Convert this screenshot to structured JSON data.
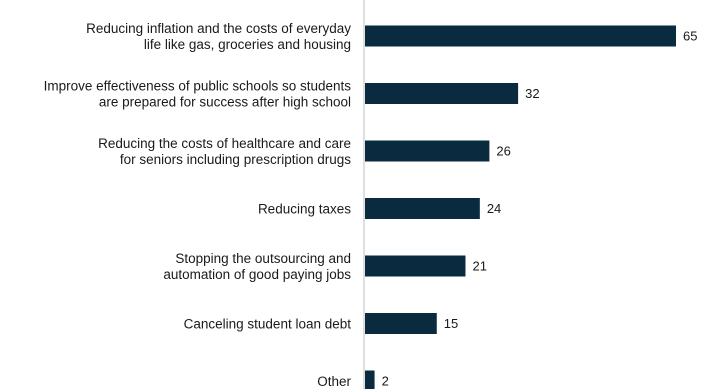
{
  "chart_data": {
    "type": "bar",
    "orientation": "horizontal",
    "categories": [
      [
        "Reducing inflation and the costs of everyday",
        "life like gas, groceries and housing"
      ],
      [
        "Improve effectiveness of public schools so students",
        "are prepared for success after high school"
      ],
      [
        "Reducing the costs of healthcare and care",
        "for seniors including prescription drugs"
      ],
      [
        "Reducing taxes"
      ],
      [
        "Stopping the outsourcing and",
        "automation of good paying jobs"
      ],
      [
        "Canceling student loan debt"
      ],
      [
        "Other"
      ]
    ],
    "values": [
      65,
      32,
      26,
      24,
      21,
      15,
      2
    ],
    "value_labels": [
      "65",
      "32",
      "26",
      "24",
      "21",
      "15",
      "2"
    ],
    "xlim": [
      0,
      65
    ],
    "grid": false,
    "colors": {
      "bar": "#0a2a40",
      "axis": "#bfbfbf",
      "text": "#1a1a1a"
    }
  }
}
